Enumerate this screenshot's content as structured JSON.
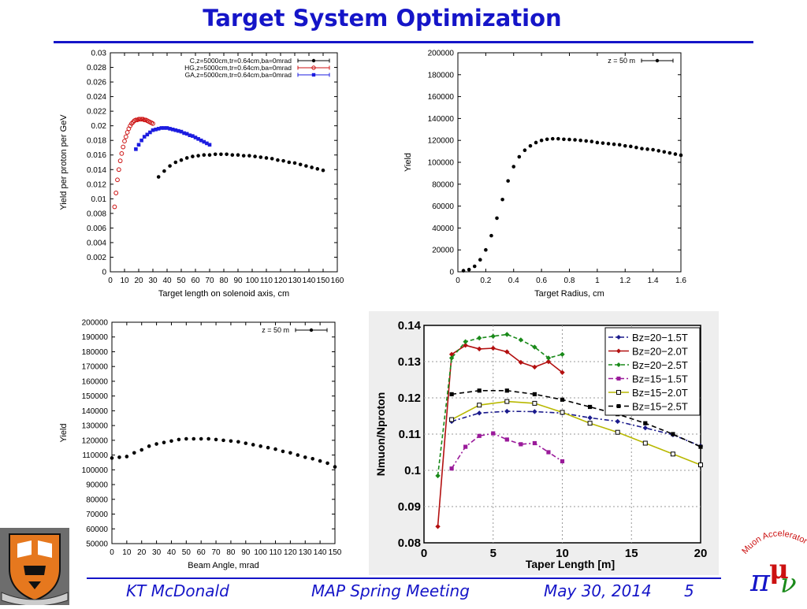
{
  "slide": {
    "title": "Target System Optimization",
    "footer": {
      "author": "KT McDonald",
      "meeting": "MAP Spring Meeting",
      "date": "May 30, 2014",
      "page": "5"
    },
    "logo_text": "Muon Accelerator Program",
    "colors": {
      "title": "#1515c8",
      "footer": "#1515c8"
    }
  },
  "chart_data": [
    {
      "type": "scatter",
      "title": "",
      "xlabel": "Target length on solenoid axis, cm",
      "ylabel": "Yield per proton per GeV",
      "xlim": [
        0,
        160
      ],
      "ylim": [
        0,
        0.03
      ],
      "xticks": [
        "0",
        "10",
        "20",
        "30",
        "40",
        "50",
        "60",
        "70",
        "80",
        "90",
        "100",
        "110",
        "120",
        "130",
        "140",
        "150",
        "160"
      ],
      "yticks": [
        "0",
        "0.002",
        "0.004",
        "0.006",
        "0.008",
        "0.01",
        "0.012",
        "0.014",
        "0.016",
        "0.018",
        "0.02",
        "0.022",
        "0.024",
        "0.026",
        "0.028",
        "0.03"
      ],
      "legend_position": "top-right",
      "series": [
        {
          "name": "C,z=5000cm,tr=0.64cm,ba=0mrad",
          "color": "#000000",
          "marker": "dot",
          "x": [
            34,
            38,
            42,
            46,
            50,
            54,
            58,
            62,
            66,
            70,
            74,
            78,
            82,
            86,
            90,
            94,
            98,
            102,
            106,
            110,
            114,
            118,
            122,
            126,
            130,
            134,
            138,
            142,
            146,
            150
          ],
          "y": [
            0.013,
            0.0138,
            0.0145,
            0.015,
            0.0153,
            0.0156,
            0.0158,
            0.0159,
            0.016,
            0.016,
            0.0161,
            0.0161,
            0.0161,
            0.016,
            0.016,
            0.0159,
            0.0159,
            0.0158,
            0.0157,
            0.0156,
            0.0155,
            0.0153,
            0.0152,
            0.015,
            0.0149,
            0.0147,
            0.0145,
            0.0143,
            0.0141,
            0.0139
          ]
        },
        {
          "name": "HG,z=5000cm,tr=0.64cm,ba=0mrad",
          "color": "#cc1111",
          "marker": "circle",
          "x": [
            3,
            4,
            5,
            6,
            7,
            8,
            9,
            10,
            11,
            12,
            13,
            14,
            15,
            16,
            17,
            18,
            19,
            20,
            21,
            22,
            23,
            24,
            25,
            26,
            27,
            28,
            29,
            30
          ],
          "y": [
            0.0089,
            0.0108,
            0.0126,
            0.014,
            0.0152,
            0.0162,
            0.0171,
            0.0179,
            0.0185,
            0.0191,
            0.0196,
            0.02,
            0.0203,
            0.0205,
            0.0207,
            0.0208,
            0.0208,
            0.0209,
            0.0209,
            0.0209,
            0.0209,
            0.0208,
            0.0208,
            0.0207,
            0.0206,
            0.0205,
            0.0204,
            0.0203
          ]
        },
        {
          "name": "GA,z=5000cm,tr=0.64cm,ba=0mrad",
          "color": "#1c1ce0",
          "marker": "square",
          "x": [
            18,
            20,
            22,
            24,
            26,
            28,
            30,
            32,
            34,
            36,
            38,
            40,
            42,
            44,
            46,
            48,
            50,
            52,
            54,
            56,
            58,
            60,
            62,
            64,
            66,
            68,
            70
          ],
          "y": [
            0.0168,
            0.0174,
            0.018,
            0.0185,
            0.0188,
            0.0191,
            0.0194,
            0.0195,
            0.0196,
            0.0197,
            0.0197,
            0.0197,
            0.0196,
            0.0195,
            0.0194,
            0.0193,
            0.0192,
            0.019,
            0.0189,
            0.0187,
            0.0186,
            0.0184,
            0.0182,
            0.018,
            0.0178,
            0.0176,
            0.0174
          ]
        }
      ]
    },
    {
      "type": "scatter",
      "title": "",
      "xlabel": "Target Radius, cm",
      "ylabel": "Yield",
      "xlim": [
        0,
        1.6
      ],
      "ylim": [
        0,
        200000
      ],
      "xticks": [
        "0",
        "0.2",
        "0.4",
        "0.6",
        "0.8",
        "1",
        "1.2",
        "1.4",
        "1.6"
      ],
      "yticks": [
        "0",
        "20000",
        "40000",
        "60000",
        "80000",
        "100000",
        "120000",
        "140000",
        "160000",
        "180000",
        "200000"
      ],
      "legend_position": "top-right",
      "series": [
        {
          "name": "z = 50 m",
          "color": "#000000",
          "marker": "dot",
          "x": [
            0.04,
            0.08,
            0.12,
            0.16,
            0.2,
            0.24,
            0.28,
            0.32,
            0.36,
            0.4,
            0.44,
            0.48,
            0.52,
            0.56,
            0.6,
            0.64,
            0.68,
            0.72,
            0.76,
            0.8,
            0.84,
            0.88,
            0.92,
            0.96,
            1.0,
            1.04,
            1.08,
            1.12,
            1.16,
            1.2,
            1.24,
            1.28,
            1.32,
            1.36,
            1.4,
            1.44,
            1.48,
            1.52,
            1.56,
            1.6
          ],
          "y": [
            1000,
            2000,
            5000,
            11000,
            20000,
            33000,
            49000,
            66000,
            83000,
            96000,
            105000,
            111000,
            115000,
            118000,
            120000,
            121000,
            121500,
            121500,
            121000,
            120800,
            120500,
            120000,
            119500,
            119000,
            118000,
            117500,
            117000,
            116500,
            116000,
            115000,
            114500,
            113500,
            112500,
            112000,
            111500,
            110500,
            109500,
            108500,
            107500,
            106500
          ]
        }
      ]
    },
    {
      "type": "scatter",
      "title": "",
      "xlabel": "Beam Angle, mrad",
      "ylabel": "Yield",
      "xlim": [
        0,
        150
      ],
      "ylim": [
        50000,
        200000
      ],
      "xticks": [
        "0",
        "10",
        "20",
        "30",
        "40",
        "50",
        "60",
        "70",
        "80",
        "90",
        "100",
        "110",
        "120",
        "130",
        "140",
        "150"
      ],
      "yticks": [
        "50000",
        "60000",
        "70000",
        "80000",
        "90000",
        "100000",
        "110000",
        "120000",
        "130000",
        "140000",
        "150000",
        "160000",
        "170000",
        "180000",
        "190000",
        "200000"
      ],
      "legend_position": "top-right",
      "series": [
        {
          "name": "z = 50 m",
          "color": "#000000",
          "marker": "dot",
          "x": [
            0,
            5,
            10,
            15,
            20,
            25,
            30,
            35,
            40,
            45,
            50,
            55,
            60,
            65,
            70,
            75,
            80,
            85,
            90,
            95,
            100,
            105,
            110,
            115,
            120,
            125,
            130,
            135,
            140,
            145,
            150
          ],
          "y": [
            108000,
            108500,
            109000,
            111500,
            113500,
            116000,
            117500,
            118500,
            119500,
            120500,
            121000,
            121000,
            121000,
            121000,
            120500,
            120000,
            119500,
            119000,
            118000,
            117000,
            116000,
            115000,
            114000,
            112500,
            111500,
            110000,
            108500,
            107500,
            106000,
            104500,
            102000
          ]
        }
      ]
    },
    {
      "type": "line",
      "title": "",
      "xlabel": "Taper Length [m]",
      "ylabel": "Nmuon/Nproton",
      "xlim": [
        0,
        20
      ],
      "ylim": [
        0.08,
        0.14
      ],
      "xticks": [
        "0",
        "5",
        "10",
        "15",
        "20"
      ],
      "yticks": [
        "0.08",
        "0.09",
        "0.1",
        "0.11",
        "0.12",
        "0.13",
        "0.14"
      ],
      "grid": true,
      "legend_position": "top-right",
      "series": [
        {
          "name": "Bz=20−1.5T",
          "color": "#1a1a8c",
          "marker": "diamond",
          "dash": "6 3 2 3",
          "x": [
            2,
            4,
            6,
            8,
            10,
            12,
            14,
            16,
            18,
            20
          ],
          "y": [
            0.1135,
            0.1158,
            0.1163,
            0.1162,
            0.1158,
            0.1145,
            0.1135,
            0.1117,
            0.1098,
            0.1067
          ]
        },
        {
          "name": "Bz=20−2.0T",
          "color": "#b31010",
          "marker": "diamond",
          "dash": "",
          "x": [
            1,
            2,
            3,
            4,
            5,
            6,
            7,
            8,
            9,
            10
          ],
          "y": [
            0.0845,
            0.132,
            0.1345,
            0.1335,
            0.1337,
            0.1327,
            0.1298,
            0.1285,
            0.13,
            0.127
          ]
        },
        {
          "name": "Bz=20−2.5T",
          "color": "#1a8a1a",
          "marker": "diamond",
          "dash": "5 3",
          "x": [
            1,
            2,
            3,
            4,
            5,
            6,
            7,
            8,
            9,
            10
          ],
          "y": [
            0.0985,
            0.131,
            0.1355,
            0.1365,
            0.137,
            0.1375,
            0.136,
            0.134,
            0.131,
            0.132
          ]
        },
        {
          "name": "Bz=15−1.5T",
          "color": "#9a1a9a",
          "marker": "square",
          "dash": "6 3 2 3",
          "x": [
            2,
            3,
            4,
            5,
            6,
            7,
            8,
            9,
            10
          ],
          "y": [
            0.1005,
            0.1065,
            0.1095,
            0.1102,
            0.1085,
            0.1072,
            0.1075,
            0.105,
            0.1025
          ]
        },
        {
          "name": "Bz=15−2.0T",
          "color": "#b8b800",
          "marker": "square",
          "dash": "",
          "x": [
            2,
            4,
            6,
            8,
            10,
            12,
            14,
            16,
            18,
            20
          ],
          "y": [
            0.114,
            0.118,
            0.119,
            0.1185,
            0.116,
            0.113,
            0.1105,
            0.1075,
            0.1045,
            0.1015
          ]
        },
        {
          "name": "Bz=15−2.5T",
          "color": "#000000",
          "marker": "square",
          "dash": "6 4",
          "x": [
            2,
            4,
            6,
            8,
            10,
            12,
            14,
            16,
            18,
            20
          ],
          "y": [
            0.121,
            0.122,
            0.122,
            0.121,
            0.1195,
            0.1175,
            0.1155,
            0.113,
            0.11,
            0.1065
          ]
        }
      ]
    }
  ]
}
